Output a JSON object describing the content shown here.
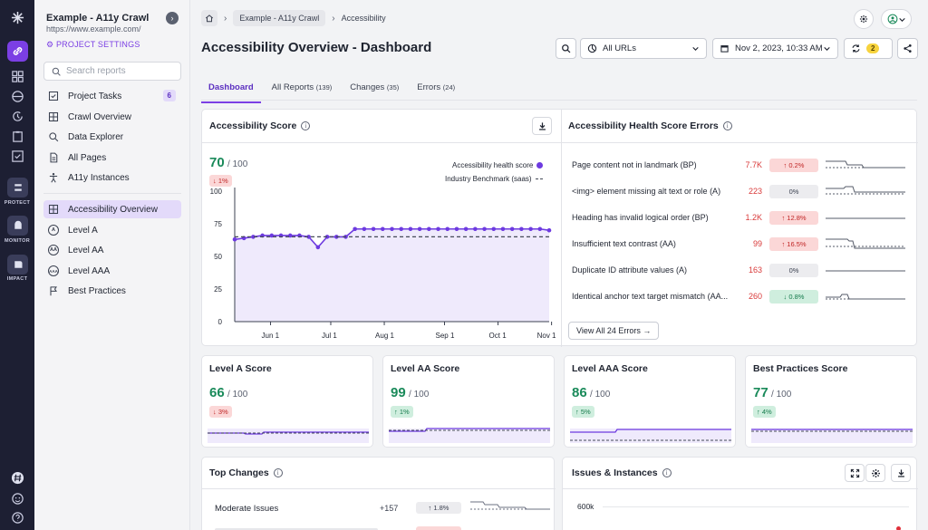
{
  "rail": {
    "products": [
      "PROTECT",
      "MONITOR",
      "IMPACT"
    ]
  },
  "project": {
    "name": "Example - A11y Crawl",
    "url": "https://www.example.com/",
    "settings_label": "PROJECT SETTINGS"
  },
  "search": {
    "placeholder": "Search reports"
  },
  "nav": [
    {
      "label": "Project Tasks",
      "icon": "tasks-icon",
      "count": "6"
    },
    {
      "label": "Crawl Overview",
      "icon": "grid-icon"
    },
    {
      "label": "Data Explorer",
      "icon": "search-icon"
    },
    {
      "label": "All Pages",
      "icon": "pages-icon"
    },
    {
      "label": "A11y Instances",
      "icon": "accessibility-icon"
    }
  ],
  "nav2": [
    {
      "label": "Accessibility Overview",
      "icon": "grid-icon",
      "selected": true
    },
    {
      "label": "Level A",
      "badge": "A"
    },
    {
      "label": "Level AA",
      "badge": "AA"
    },
    {
      "label": "Level AAA",
      "badge": "AAA"
    },
    {
      "label": "Best Practices",
      "icon": "flag-icon"
    }
  ],
  "breadcrumb": {
    "project": "Example - A11y Crawl",
    "current": "Accessibility"
  },
  "page": {
    "title": "Accessibility Overview - Dashboard"
  },
  "controls": {
    "url_filter": "All URLs",
    "date": "Nov 2, 2023, 10:33 AM",
    "refresh_count": "2"
  },
  "tabs": [
    {
      "label": "Dashboard",
      "count": "",
      "active": true
    },
    {
      "label": "All Reports",
      "count": "(139)"
    },
    {
      "label": "Changes",
      "count": "(35)"
    },
    {
      "label": "Errors",
      "count": "(24)"
    }
  ],
  "score_card": {
    "title": "Accessibility Score",
    "score": "70",
    "of": "/ 100",
    "delta": "↓ 1%",
    "legend_health": "Accessibility health score",
    "legend_benchmark": "Industry Benchmark (saas)"
  },
  "chart_data": {
    "type": "line",
    "title": "Accessibility Score",
    "ylim": [
      0,
      100
    ],
    "yticks": [
      "100",
      "75",
      "50",
      "25",
      "0"
    ],
    "xticks": [
      "Jun 1",
      "Jul 1",
      "Aug 1",
      "Sep 1",
      "Oct 1",
      "Nov 1"
    ],
    "series": [
      {
        "name": "Accessibility health score",
        "color": "#6d3ae0",
        "values": [
          63,
          64,
          65,
          66,
          66,
          66,
          66,
          66,
          65,
          57,
          65,
          65,
          65,
          71,
          71,
          71,
          71,
          71,
          71,
          71,
          71,
          71,
          71,
          71,
          71,
          71,
          71,
          71,
          71,
          71,
          71,
          71,
          71,
          71,
          70
        ]
      },
      {
        "name": "Industry Benchmark (saas)",
        "color": "#444a58",
        "dashed": true,
        "values": [
          65,
          65,
          65,
          65,
          65,
          65,
          65,
          65,
          65,
          65,
          65,
          65,
          65,
          65,
          65,
          65,
          65,
          65,
          65,
          65,
          65,
          65,
          65,
          65,
          65,
          65,
          65,
          65,
          65,
          65,
          65,
          65,
          65,
          65,
          65
        ]
      }
    ]
  },
  "errors_card": {
    "title": "Accessibility Health Score Errors",
    "rows": [
      {
        "label": "Page content not in landmark (BP)",
        "value": "7.7K",
        "change": "↑ 0.2%",
        "kind": "down"
      },
      {
        "label": "<img> element missing alt text or role (A)",
        "value": "223",
        "change": "0%",
        "kind": "neutral"
      },
      {
        "label": "Heading has invalid logical order (BP)",
        "value": "1.2K",
        "change": "↑ 12.8%",
        "kind": "down"
      },
      {
        "label": "Insufficient text contrast (AA)",
        "value": "99",
        "change": "↑ 16.5%",
        "kind": "down"
      },
      {
        "label": "Duplicate ID attribute values (A)",
        "value": "163",
        "change": "0%",
        "kind": "neutral"
      },
      {
        "label": "Identical anchor text target mismatch (AA...",
        "value": "260",
        "change": "↓ 0.8%",
        "kind": "up"
      }
    ],
    "view_all": "View All 24 Errors →"
  },
  "level_cards": [
    {
      "title": "Level A Score",
      "score": "66",
      "of": "/ 100",
      "delta": "↓ 3%",
      "kind": "down"
    },
    {
      "title": "Level AA Score",
      "score": "99",
      "of": "/ 100",
      "delta": "↑ 1%",
      "kind": "up"
    },
    {
      "title": "Level AAA Score",
      "score": "86",
      "of": "/ 100",
      "delta": "↑ 5%",
      "kind": "up"
    },
    {
      "title": "Best Practices Score",
      "score": "77",
      "of": "/ 100",
      "delta": "↑ 4%",
      "kind": "up"
    }
  ],
  "top_changes": {
    "title": "Top Changes",
    "rows": [
      {
        "label": "Moderate Issues",
        "value": "+157",
        "change": "↑ 1.8%",
        "kind": "neutral"
      }
    ]
  },
  "issues_card": {
    "title": "Issues & Instances",
    "ytick": "600k"
  },
  "colors": {
    "accent": "#7b3fe4",
    "good": "#1a8a5a",
    "bad": "#d93a3a",
    "rail": "#1d1f33"
  }
}
